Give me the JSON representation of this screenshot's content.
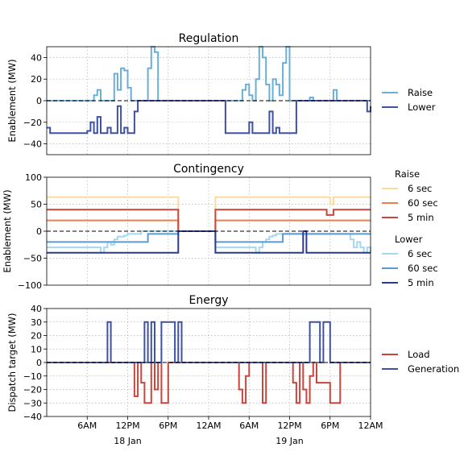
{
  "chart_data": [
    {
      "type": "line",
      "title": "Regulation",
      "ylabel": "Enablement (MW)",
      "ylim": [
        -50,
        50
      ],
      "yticks": [
        -40,
        -20,
        0,
        20,
        40
      ],
      "grid": true,
      "legend_position": "right",
      "zero_line": "dashed",
      "series": [
        {
          "name": "Raise",
          "color": "#6baed6",
          "x": [
            0,
            14,
            15,
            16,
            17,
            18,
            19,
            20,
            21,
            22,
            23,
            24,
            25,
            26,
            27,
            28,
            29,
            30,
            31,
            32,
            33,
            34,
            35,
            36,
            37,
            38,
            39,
            40,
            41,
            42,
            43,
            44,
            45,
            46,
            47,
            48,
            56,
            57,
            58,
            59,
            60,
            61,
            62,
            63,
            64,
            65,
            66,
            67,
            68,
            69,
            70,
            71,
            72,
            73,
            74,
            75,
            76,
            77,
            78,
            79,
            84,
            85,
            86,
            87,
            88,
            89,
            95,
            96
          ],
          "y": [
            0,
            5,
            10,
            0,
            0,
            0,
            0,
            25,
            10,
            30,
            28,
            12,
            0,
            0,
            0,
            0,
            0,
            30,
            50,
            45,
            0,
            0,
            0,
            0,
            0,
            0,
            0,
            0,
            0,
            0,
            0,
            0,
            0,
            0,
            0,
            0,
            0,
            0,
            10,
            15,
            5,
            0,
            20,
            50,
            40,
            15,
            0,
            20,
            15,
            5,
            35,
            50,
            0,
            0,
            0,
            0,
            0,
            0,
            3,
            0,
            0,
            10,
            0,
            0,
            0,
            0,
            0,
            0
          ]
        },
        {
          "name": "Lower",
          "color": "#3f51a3",
          "x": [
            0,
            1,
            2,
            3,
            4,
            5,
            6,
            7,
            8,
            9,
            10,
            11,
            12,
            13,
            14,
            15,
            16,
            17,
            18,
            19,
            20,
            21,
            22,
            23,
            24,
            25,
            26,
            27,
            28,
            29,
            30,
            31,
            32,
            33,
            34,
            35,
            36,
            37,
            38,
            39,
            40,
            41,
            42,
            43,
            44,
            45,
            46,
            47,
            48,
            49,
            50,
            51,
            52,
            53,
            54,
            55,
            56,
            57,
            58,
            59,
            60,
            61,
            62,
            63,
            64,
            65,
            66,
            67,
            68,
            69,
            70,
            71,
            72,
            73,
            74,
            75,
            76,
            77,
            78,
            79,
            80,
            81,
            82,
            83,
            84,
            85,
            86,
            87,
            88,
            89,
            90,
            91,
            92,
            93,
            94,
            95,
            96
          ],
          "y": [
            -25,
            -30,
            -30,
            -30,
            -30,
            -30,
            -30,
            -30,
            -30,
            -30,
            -30,
            -30,
            -28,
            -20,
            -30,
            -15,
            -30,
            -30,
            -25,
            -30,
            -30,
            -5,
            -30,
            -25,
            -30,
            -30,
            -10,
            0,
            0,
            0,
            0,
            0,
            0,
            0,
            0,
            0,
            0,
            0,
            0,
            0,
            0,
            0,
            0,
            0,
            0,
            0,
            0,
            0,
            0,
            0,
            0,
            0,
            0,
            -30,
            -30,
            -30,
            -30,
            -30,
            -30,
            -30,
            -20,
            -30,
            -30,
            -30,
            -30,
            -30,
            -10,
            -30,
            -25,
            -30,
            -30,
            -30,
            -30,
            -30,
            0,
            0,
            0,
            0,
            0,
            0,
            0,
            0,
            0,
            0,
            0,
            0,
            0,
            0,
            0,
            0,
            0,
            0,
            0,
            0,
            0,
            -10,
            -5
          ]
        }
      ]
    },
    {
      "type": "line",
      "title": "Contingency",
      "ylabel": "Enablement (MW)",
      "ylim": [
        -100,
        100
      ],
      "yticks": [
        -100,
        -50,
        0,
        50,
        100
      ],
      "grid": true,
      "legend_position": "right",
      "legend_groups": [
        "Raise",
        "Lower"
      ],
      "zero_line": "dashed",
      "series": [
        {
          "name": "6 sec",
          "group": "Raise",
          "color": "#fdd9a0",
          "x": [
            0,
            38,
            39,
            49,
            50,
            83,
            84,
            85,
            96
          ],
          "y": [
            63,
            63,
            0,
            0,
            63,
            63,
            50,
            63,
            63
          ]
        },
        {
          "name": "60 sec",
          "group": "Raise",
          "color": "#ef7d4a",
          "x": [
            0,
            38,
            39,
            49,
            50,
            96
          ],
          "y": [
            20,
            20,
            0,
            0,
            20,
            20
          ]
        },
        {
          "name": "5 min",
          "group": "Raise",
          "color": "#c8463b",
          "x": [
            0,
            38,
            39,
            49,
            50,
            82,
            83,
            84,
            85,
            96
          ],
          "y": [
            40,
            40,
            0,
            0,
            40,
            40,
            30,
            30,
            40,
            40
          ]
        },
        {
          "name": "6 sec",
          "group": "Lower",
          "color": "#a6d7ee",
          "x": [
            0,
            15,
            16,
            17,
            18,
            19,
            20,
            21,
            22,
            23,
            24,
            25,
            26,
            27,
            28,
            39,
            49,
            50,
            61,
            62,
            63,
            64,
            65,
            66,
            67,
            68,
            69,
            70,
            71,
            72,
            73,
            74,
            75,
            76,
            77,
            78,
            79,
            80,
            81,
            82,
            83,
            84,
            85,
            86,
            87,
            88,
            89,
            90,
            91,
            92,
            93,
            94,
            95,
            96
          ],
          "y": [
            -30,
            -30,
            -40,
            -30,
            -20,
            -25,
            -15,
            -10,
            -10,
            -8,
            -5,
            -5,
            -5,
            -5,
            0,
            0,
            0,
            -30,
            -30,
            -40,
            -30,
            -20,
            -15,
            -10,
            -8,
            -5,
            -5,
            -5,
            -5,
            -5,
            -5,
            -5,
            -5,
            -5,
            -5,
            -5,
            -5,
            -5,
            -5,
            -5,
            -5,
            -5,
            -5,
            -5,
            -5,
            -5,
            -5,
            -15,
            -30,
            -20,
            -30,
            -40,
            -30,
            -40
          ]
        },
        {
          "name": "60 sec",
          "group": "Lower",
          "color": "#5b9bd5",
          "x": [
            0,
            29,
            30,
            39,
            49,
            50,
            69,
            70,
            96
          ],
          "y": [
            -20,
            -20,
            -5,
            0,
            0,
            -20,
            -20,
            -5,
            -5
          ]
        },
        {
          "name": "5 min",
          "group": "Lower",
          "color": "#2b3a8f",
          "x": [
            0,
            38,
            39,
            49,
            50,
            75,
            76,
            77,
            96
          ],
          "y": [
            -40,
            -40,
            0,
            0,
            -40,
            -40,
            0,
            -40,
            -40
          ]
        }
      ]
    },
    {
      "type": "line",
      "title": "Energy",
      "ylabel": "Dispatch target (MW)",
      "ylim": [
        -40,
        40
      ],
      "yticks": [
        -40,
        -30,
        -20,
        -10,
        0,
        10,
        20,
        30,
        40
      ],
      "grid": true,
      "legend_position": "right",
      "zero_line": "dashed",
      "xticks": [
        "6AM",
        "12PM",
        "6PM",
        "12AM",
        "6AM",
        "12PM",
        "6PM",
        "12AM"
      ],
      "day_labels": [
        "18 Jan",
        "19 Jan"
      ],
      "series": [
        {
          "name": "Load",
          "color": "#c8463b",
          "x": [
            0,
            25,
            26,
            27,
            28,
            29,
            30,
            31,
            32,
            33,
            34,
            35,
            36,
            37,
            56,
            57,
            58,
            59,
            60,
            64,
            65,
            72,
            73,
            74,
            75,
            76,
            77,
            78,
            79,
            80,
            84,
            85,
            86,
            87,
            96
          ],
          "y": [
            0,
            0,
            -25,
            0,
            -15,
            -30,
            -30,
            0,
            -20,
            0,
            -30,
            -30,
            0,
            0,
            0,
            -20,
            -30,
            -10,
            0,
            -30,
            0,
            0,
            -15,
            -30,
            0,
            -20,
            -30,
            -10,
            0,
            -15,
            -30,
            -30,
            -30,
            0,
            0
          ]
        },
        {
          "name": "Generation",
          "color": "#3f51a3",
          "x": [
            0,
            17,
            18,
            19,
            27,
            28,
            29,
            30,
            31,
            32,
            33,
            34,
            35,
            36,
            37,
            38,
            39,
            40,
            77,
            78,
            79,
            80,
            81,
            82,
            83,
            84,
            85,
            96
          ],
          "y": [
            0,
            0,
            30,
            0,
            0,
            0,
            30,
            0,
            30,
            0,
            0,
            30,
            30,
            30,
            30,
            0,
            30,
            0,
            0,
            30,
            30,
            30,
            0,
            30,
            30,
            0,
            0,
            0
          ]
        }
      ]
    }
  ]
}
